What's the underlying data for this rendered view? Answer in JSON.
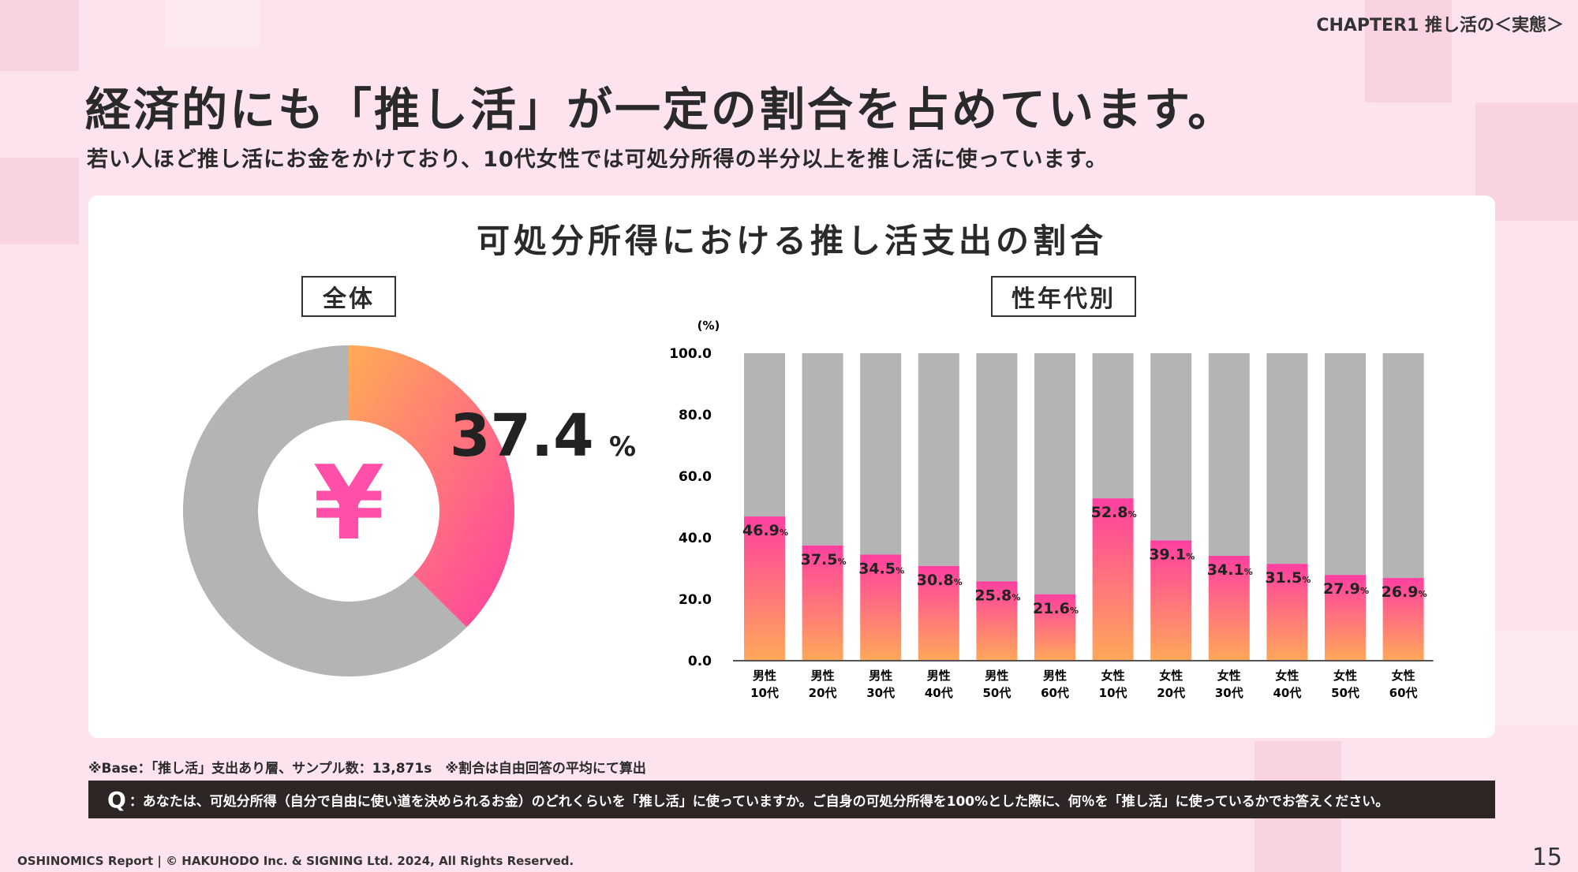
{
  "header": {
    "chapter": "CHAPTER1 推し活の＜実態＞",
    "title": "経済的にも「推し活」が一定の割合を占めています。",
    "subtitle": "若い人ほど推し活にお金をかけており、10代女性では可処分所得の半分以上を推し活に使っています。"
  },
  "colors": {
    "gray": "#b4b4b4",
    "pink": "#ff3fa0",
    "orange": "#ffa85a"
  },
  "chart_data": [
    {
      "type": "pie",
      "title": "可処分所得における推し活支出の割合",
      "label": "全体",
      "center_icon": "yen-icon",
      "values": [
        37.4,
        62.6
      ],
      "value_label": "37.4",
      "unit": "%"
    },
    {
      "type": "bar",
      "label": "性年代別",
      "ylabel": "(%)",
      "ylim": [
        0,
        100
      ],
      "yticks": [
        "0.0",
        "20.0",
        "40.0",
        "60.0",
        "80.0",
        "100.0"
      ],
      "categories": [
        [
          "男性",
          "10代"
        ],
        [
          "男性",
          "20代"
        ],
        [
          "男性",
          "30代"
        ],
        [
          "男性",
          "40代"
        ],
        [
          "男性",
          "50代"
        ],
        [
          "男性",
          "60代"
        ],
        [
          "女性",
          "10代"
        ],
        [
          "女性",
          "20代"
        ],
        [
          "女性",
          "30代"
        ],
        [
          "女性",
          "40代"
        ],
        [
          "女性",
          "50代"
        ],
        [
          "女性",
          "60代"
        ]
      ],
      "values": [
        46.9,
        37.5,
        34.5,
        30.8,
        25.8,
        21.6,
        52.8,
        39.1,
        34.1,
        31.5,
        27.9,
        26.9
      ]
    }
  ],
  "footer": {
    "note": "※Base：「推し活」支出あり層、サンプル数：13,871s　※割合は自由回答の平均にて算出",
    "q_mark": "Q",
    "question": "：あなたは、可処分所得（自分で自由に使い道を決められるお金）のどれくらいを「推し活」に使っていますか。ご自身の可処分所得を100%とした際に、何％を「推し活」に使っているかでお答えください。",
    "copyright": "OSHINOMICS Report | © HAKUHODO Inc. & SIGNING Ltd. 2024, All Rights Reserved.",
    "page": "15"
  }
}
